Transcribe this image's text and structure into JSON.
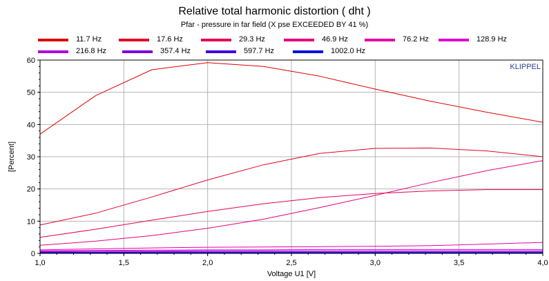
{
  "chart_data": {
    "type": "line",
    "title": "Relative total harmonic distortion  ( dht )",
    "subtitle": "Pfar - pressure in far field  (X pse EXCEEDED BY 41 %)",
    "xlabel": "Voltage U1  [V]",
    "ylabel": "[Percent]",
    "xlim": [
      1.0,
      4.0
    ],
    "ylim": [
      0,
      60
    ],
    "xticks": [
      "1,0",
      "1,5",
      "2,0",
      "2,5",
      "3,0",
      "3,5",
      "4,0"
    ],
    "yticks": [
      "0",
      "10",
      "20",
      "30",
      "40",
      "50",
      "60"
    ],
    "grid": true,
    "watermark": "KLIPPEL",
    "x": [
      1.0,
      1.333,
      1.667,
      2.0,
      2.333,
      2.667,
      3.0,
      3.333,
      3.667,
      4.0
    ],
    "series": [
      {
        "name": "11.7 Hz",
        "color": "#dd0000",
        "values": [
          37,
          49,
          57,
          59.2,
          58,
          55,
          51,
          47.2,
          43.8,
          40.7
        ]
      },
      {
        "name": "17.6 Hz",
        "color": "#e0002a",
        "values": [
          8.8,
          12.5,
          17.5,
          22.8,
          27.5,
          31,
          32.6,
          32.7,
          31.8,
          30
        ]
      },
      {
        "name": "29.3 Hz",
        "color": "#e20055",
        "values": [
          5,
          7.5,
          10.3,
          13,
          15.4,
          17.3,
          18.6,
          19.4,
          19.8,
          19.8
        ]
      },
      {
        "name": "46.9 Hz",
        "color": "#e3007e",
        "values": [
          2.5,
          3.8,
          5.5,
          7.8,
          10.6,
          14.2,
          18,
          22,
          25.7,
          28.8
        ]
      },
      {
        "name": "76.2 Hz",
        "color": "#e400a8",
        "values": [
          1.1,
          1.4,
          1.7,
          1.9,
          2.0,
          2.1,
          2.2,
          2.4,
          2.9,
          3.4
        ]
      },
      {
        "name": "128.9 Hz",
        "color": "#dd00d0",
        "values": [
          0.8,
          0.9,
          1.0,
          1.1,
          1.1,
          1.2,
          1.2,
          1.2,
          1.2,
          1.2
        ]
      },
      {
        "name": "216.8 Hz",
        "color": "#b000dd",
        "values": [
          0.6,
          0.7,
          0.7,
          0.8,
          0.8,
          0.8,
          0.8,
          0.8,
          0.8,
          0.8
        ]
      },
      {
        "name": "357.4 Hz",
        "color": "#7a00e0",
        "values": [
          0.4,
          0.4,
          0.5,
          0.5,
          0.5,
          0.5,
          0.5,
          0.5,
          0.5,
          0.5
        ]
      },
      {
        "name": "597.7 Hz",
        "color": "#3d00e2",
        "values": [
          0.3,
          0.3,
          0.3,
          0.3,
          0.3,
          0.3,
          0.3,
          0.3,
          0.3,
          0.3
        ]
      },
      {
        "name": "1002.0 Hz",
        "color": "#0010dd",
        "values": [
          0.2,
          0.2,
          0.2,
          0.2,
          0.2,
          0.2,
          0.2,
          0.2,
          0.2,
          0.2
        ]
      }
    ]
  }
}
